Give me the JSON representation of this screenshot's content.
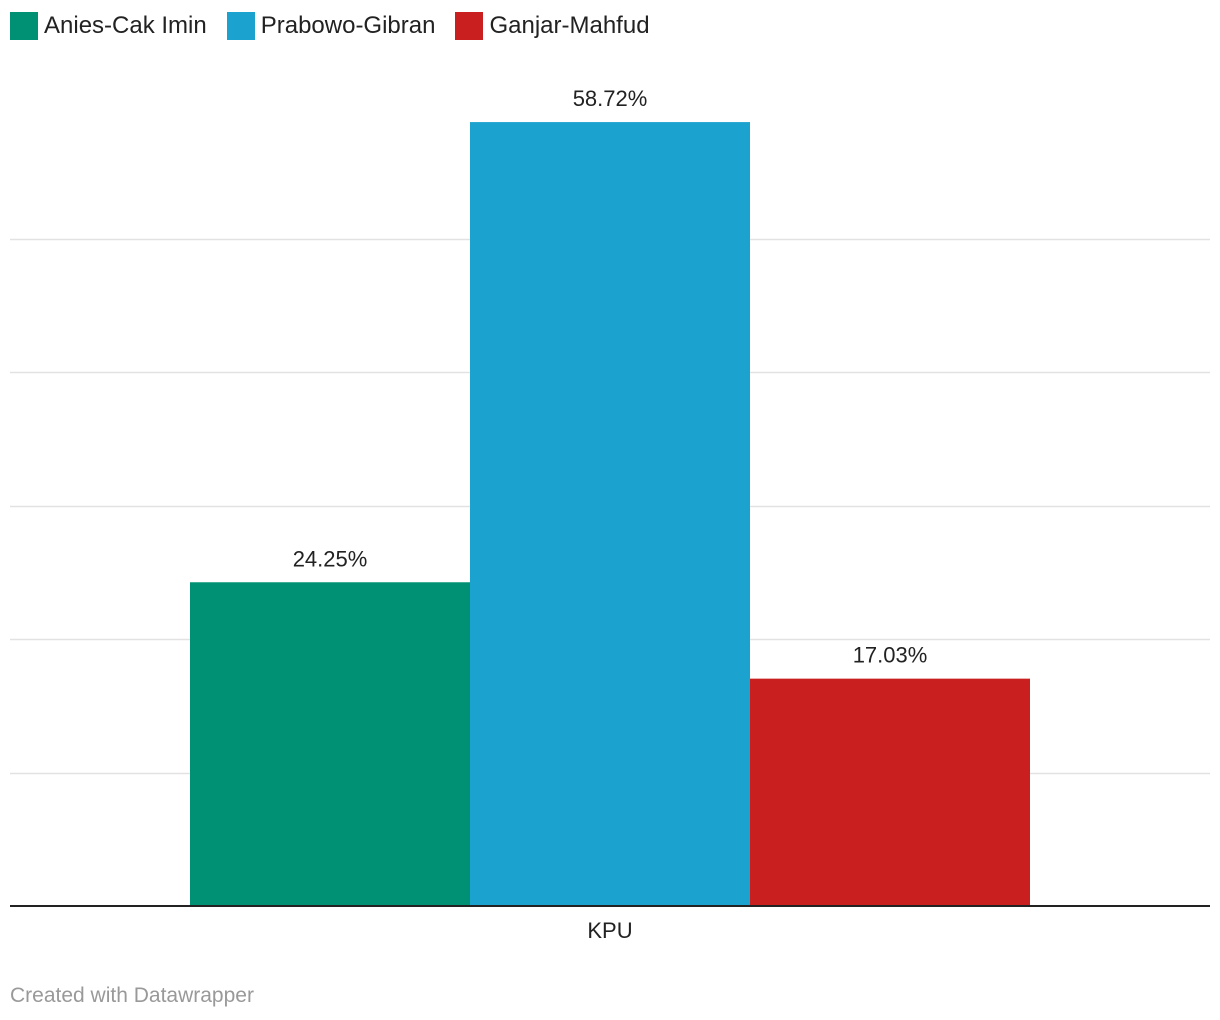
{
  "chart_data": {
    "type": "bar",
    "categories": [
      "KPU"
    ],
    "series": [
      {
        "name": "Anies-Cak Imin",
        "values": [
          24.25
        ],
        "label": "24.25%",
        "color": "#009174"
      },
      {
        "name": "Prabowo-Gibran",
        "values": [
          58.72
        ],
        "label": "58.72%",
        "color": "#1ba2ce"
      },
      {
        "name": "Ganjar-Mahfud",
        "values": [
          17.03
        ],
        "label": "17.03%",
        "color": "#c91f1f"
      }
    ],
    "title": "",
    "xlabel": "",
    "ylabel": "",
    "ylim": [
      0,
      60
    ],
    "grid": true,
    "legend": "top-left"
  },
  "footer": {
    "credit": "Created with Datawrapper"
  }
}
